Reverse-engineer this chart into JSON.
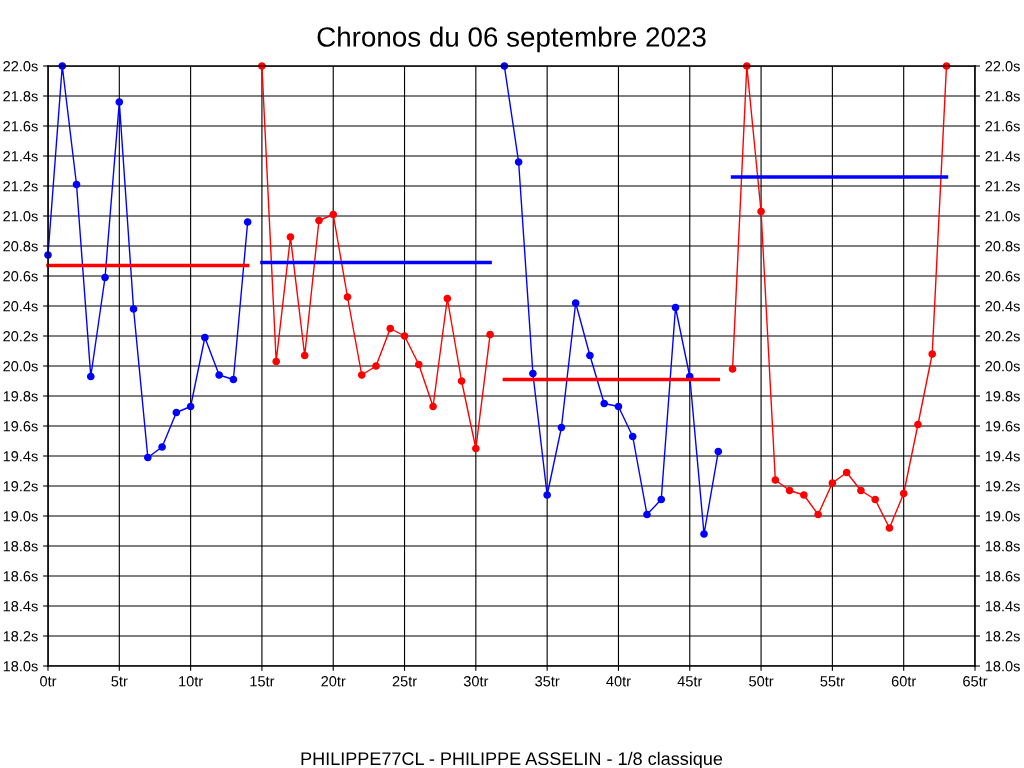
{
  "chart_data": {
    "type": "line",
    "title": "Chronos du 06 septembre 2023",
    "xlabel": "PHILIPPE77CL - PHILIPPE ASSELIN - 1/8 classique",
    "series": [
      {
        "color": "#0000ff",
        "x": [
          0,
          1,
          2,
          3,
          4,
          5,
          6,
          7,
          8,
          9,
          10,
          11,
          12,
          13,
          14
        ],
        "values": [
          20.74,
          22.0,
          21.21,
          19.93,
          20.59,
          21.76,
          20.38,
          19.39,
          19.46,
          19.69,
          19.73,
          20.19,
          19.94,
          19.91,
          20.96
        ]
      },
      {
        "color": "#ff0000",
        "x": [
          15,
          16,
          17,
          18,
          19,
          20,
          21,
          22,
          23,
          24,
          25,
          26,
          27,
          28,
          29,
          30,
          31
        ],
        "values": [
          22.0,
          20.03,
          20.86,
          20.07,
          20.97,
          21.01,
          20.46,
          19.94,
          20.0,
          20.25,
          20.2,
          20.01,
          19.73,
          20.45,
          19.9,
          19.45,
          20.21
        ]
      },
      {
        "color": "#0000ff",
        "x": [
          32,
          33,
          34,
          35,
          36,
          37,
          38,
          39,
          40,
          41,
          42,
          43,
          44,
          45,
          46,
          47
        ],
        "values": [
          22.0,
          21.36,
          19.95,
          19.14,
          19.59,
          20.42,
          20.07,
          19.75,
          19.73,
          19.53,
          19.01,
          19.11,
          20.39,
          19.93,
          18.88,
          19.43
        ]
      },
      {
        "color": "#ff0000",
        "x": [
          48,
          49,
          50,
          51,
          52,
          53,
          54,
          55,
          56,
          57,
          58,
          59,
          60,
          61,
          62,
          63
        ],
        "values": [
          19.98,
          22.0,
          21.03,
          19.24,
          19.17,
          19.14,
          19.01,
          19.22,
          19.29,
          19.17,
          19.11,
          18.92,
          19.15,
          19.61,
          20.08,
          22.0
        ]
      },
      {
        "color": "#ff0000",
        "marker": "none",
        "x": [
          0,
          14
        ],
        "values": [
          20.67,
          20.67
        ]
      },
      {
        "color": "#0000ff",
        "marker": "none",
        "x": [
          15,
          31
        ],
        "values": [
          20.69,
          20.69
        ]
      },
      {
        "color": "#ff0000",
        "marker": "none",
        "x": [
          32,
          47
        ],
        "values": [
          19.91,
          19.91
        ]
      },
      {
        "color": "#0000ff",
        "marker": "none",
        "x": [
          48,
          63
        ],
        "values": [
          21.26,
          21.26
        ]
      }
    ],
    "xlim": [
      0,
      65
    ],
    "xticks": [
      {
        "value": 0,
        "label": "0tr"
      },
      {
        "value": 5,
        "label": "5tr"
      },
      {
        "value": 10,
        "label": "10tr"
      },
      {
        "value": 15,
        "label": "15tr"
      },
      {
        "value": 20,
        "label": "20tr"
      },
      {
        "value": 25,
        "label": "25tr"
      },
      {
        "value": 30,
        "label": "30tr"
      },
      {
        "value": 35,
        "label": "35tr"
      },
      {
        "value": 40,
        "label": "40tr"
      },
      {
        "value": 45,
        "label": "45tr"
      },
      {
        "value": 50,
        "label": "50tr"
      },
      {
        "value": 55,
        "label": "55tr"
      },
      {
        "value": 60,
        "label": "60tr"
      },
      {
        "value": 65,
        "label": "65tr"
      }
    ],
    "ylim": [
      18.0,
      22.0
    ],
    "yticks": [
      {
        "value": 18.0,
        "label": "18.0s"
      },
      {
        "value": 18.2,
        "label": "18.2s"
      },
      {
        "value": 18.4,
        "label": "18.4s"
      },
      {
        "value": 18.6,
        "label": "18.6s"
      },
      {
        "value": 18.8,
        "label": "18.8s"
      },
      {
        "value": 19.0,
        "label": "19.0s"
      },
      {
        "value": 19.2,
        "label": "19.2s"
      },
      {
        "value": 19.4,
        "label": "19.4s"
      },
      {
        "value": 19.6,
        "label": "19.6s"
      },
      {
        "value": 19.8,
        "label": "19.8s"
      },
      {
        "value": 20.0,
        "label": "20.0s"
      },
      {
        "value": 20.2,
        "label": "20.2s"
      },
      {
        "value": 20.4,
        "label": "20.4s"
      },
      {
        "value": 20.6,
        "label": "20.6s"
      },
      {
        "value": 20.8,
        "label": "20.8s"
      },
      {
        "value": 21.0,
        "label": "21.0s"
      },
      {
        "value": 21.2,
        "label": "21.2s"
      },
      {
        "value": 21.4,
        "label": "21.4s"
      },
      {
        "value": 21.6,
        "label": "21.6s"
      },
      {
        "value": 21.8,
        "label": "21.8s"
      },
      {
        "value": 22.0,
        "label": "22.0s"
      }
    ],
    "y2lim": [
      18.0,
      22.0
    ],
    "y2ticks": [
      {
        "value": 18.0,
        "label": "18.0s"
      },
      {
        "value": 18.2,
        "label": "18.2s"
      },
      {
        "value": 18.4,
        "label": "18.4s"
      },
      {
        "value": 18.6,
        "label": "18.6s"
      },
      {
        "value": 18.8,
        "label": "18.8s"
      },
      {
        "value": 19.0,
        "label": "19.0s"
      },
      {
        "value": 19.2,
        "label": "19.2s"
      },
      {
        "value": 19.4,
        "label": "19.4s"
      },
      {
        "value": 19.6,
        "label": "19.6s"
      },
      {
        "value": 19.8,
        "label": "19.8s"
      },
      {
        "value": 20.0,
        "label": "20.0s"
      },
      {
        "value": 20.2,
        "label": "20.2s"
      },
      {
        "value": 20.4,
        "label": "20.4s"
      },
      {
        "value": 20.6,
        "label": "20.6s"
      },
      {
        "value": 20.8,
        "label": "20.8s"
      },
      {
        "value": 21.0,
        "label": "21.0s"
      },
      {
        "value": 21.2,
        "label": "21.2s"
      },
      {
        "value": 21.4,
        "label": "21.4s"
      },
      {
        "value": 21.6,
        "label": "21.6s"
      },
      {
        "value": 21.8,
        "label": "21.8s"
      },
      {
        "value": 22.0,
        "label": "22.0s"
      }
    ],
    "grid": true,
    "marker": "circle",
    "line_style": "solid",
    "legend": false
  }
}
